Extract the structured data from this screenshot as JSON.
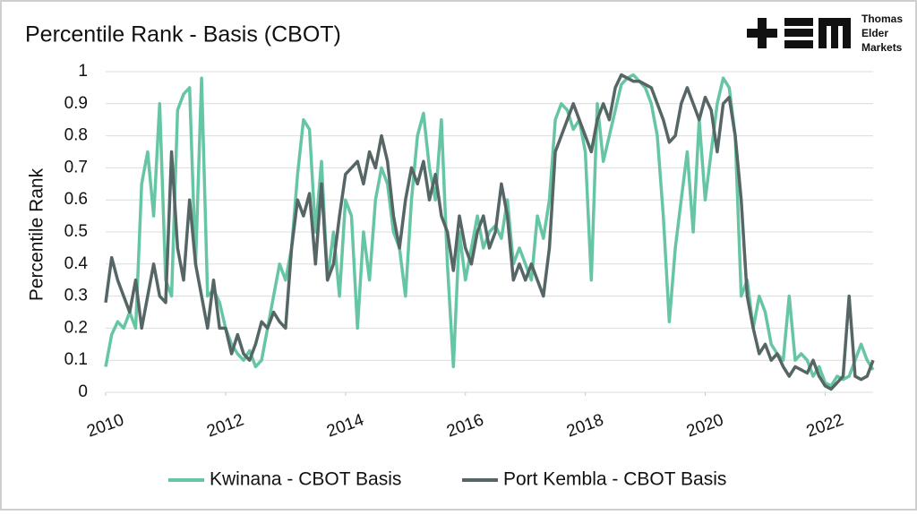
{
  "chart_data": {
    "type": "line",
    "title": "Percentile Rank - Basis (CBOT)",
    "y_label": "Percentile Rank",
    "annotations": [
      "Thomas",
      "Elder",
      "Markets"
    ],
    "x": [
      2010,
      2010.1,
      2010.2,
      2010.3,
      2010.4,
      2010.5,
      2010.6,
      2010.7,
      2010.8,
      2010.9,
      2011,
      2011.1,
      2011.2,
      2011.3,
      2011.4,
      2011.5,
      2011.6,
      2011.7,
      2011.8,
      2011.9,
      2012,
      2012.1,
      2012.2,
      2012.3,
      2012.4,
      2012.5,
      2012.6,
      2012.7,
      2012.8,
      2012.9,
      2013,
      2013.1,
      2013.2,
      2013.3,
      2013.4,
      2013.5,
      2013.6,
      2013.7,
      2013.8,
      2013.9,
      2014,
      2014.1,
      2014.2,
      2014.3,
      2014.4,
      2014.5,
      2014.6,
      2014.7,
      2014.8,
      2014.9,
      2015,
      2015.1,
      2015.2,
      2015.3,
      2015.4,
      2015.5,
      2015.6,
      2015.7,
      2015.8,
      2015.9,
      2016,
      2016.1,
      2016.2,
      2016.3,
      2016.4,
      2016.5,
      2016.6,
      2016.7,
      2016.8,
      2016.9,
      2017,
      2017.1,
      2017.2,
      2017.3,
      2017.4,
      2017.5,
      2017.6,
      2017.7,
      2017.8,
      2017.9,
      2018,
      2018.1,
      2018.2,
      2018.3,
      2018.4,
      2018.5,
      2018.6,
      2018.7,
      2018.8,
      2018.9,
      2019,
      2019.1,
      2019.2,
      2019.3,
      2019.4,
      2019.5,
      2019.6,
      2019.7,
      2019.8,
      2019.9,
      2020,
      2020.1,
      2020.2,
      2020.3,
      2020.4,
      2020.5,
      2020.6,
      2020.7,
      2020.8,
      2020.9,
      2021,
      2021.1,
      2021.2,
      2021.3,
      2021.4,
      2021.5,
      2021.6,
      2021.7,
      2021.8,
      2021.9,
      2022,
      2022.1,
      2022.2,
      2022.3,
      2022.4,
      2022.5,
      2022.6,
      2022.7,
      2022.8
    ],
    "series": [
      {
        "name": "Kwinana - CBOT Basis",
        "color": "#66c6a4",
        "values": [
          0.08,
          0.18,
          0.22,
          0.2,
          0.25,
          0.2,
          0.65,
          0.75,
          0.55,
          0.9,
          0.35,
          0.3,
          0.88,
          0.93,
          0.95,
          0.4,
          0.98,
          0.3,
          0.32,
          0.28,
          0.2,
          0.15,
          0.12,
          0.1,
          0.13,
          0.08,
          0.1,
          0.2,
          0.3,
          0.4,
          0.35,
          0.45,
          0.68,
          0.85,
          0.82,
          0.5,
          0.72,
          0.35,
          0.5,
          0.3,
          0.6,
          0.55,
          0.2,
          0.5,
          0.35,
          0.6,
          0.7,
          0.65,
          0.5,
          0.45,
          0.3,
          0.6,
          0.8,
          0.87,
          0.7,
          0.6,
          0.85,
          0.4,
          0.08,
          0.5,
          0.35,
          0.45,
          0.55,
          0.45,
          0.5,
          0.52,
          0.48,
          0.6,
          0.4,
          0.45,
          0.4,
          0.35,
          0.55,
          0.48,
          0.6,
          0.85,
          0.9,
          0.88,
          0.82,
          0.85,
          0.75,
          0.35,
          0.9,
          0.72,
          0.8,
          0.88,
          0.96,
          0.98,
          0.99,
          0.97,
          0.95,
          0.9,
          0.8,
          0.55,
          0.22,
          0.45,
          0.6,
          0.75,
          0.5,
          0.85,
          0.6,
          0.75,
          0.9,
          0.98,
          0.95,
          0.8,
          0.3,
          0.35,
          0.2,
          0.3,
          0.25,
          0.15,
          0.12,
          0.1,
          0.3,
          0.1,
          0.12,
          0.1,
          0.05,
          0.08,
          0.03,
          0.02,
          0.05,
          0.04,
          0.05,
          0.1,
          0.15,
          0.1,
          0.07
        ]
      },
      {
        "name": "Port Kembla - CBOT Basis",
        "color": "#566565",
        "values": [
          0.28,
          0.42,
          0.35,
          0.3,
          0.25,
          0.35,
          0.2,
          0.3,
          0.4,
          0.3,
          0.28,
          0.75,
          0.45,
          0.35,
          0.6,
          0.4,
          0.3,
          0.2,
          0.35,
          0.2,
          0.2,
          0.12,
          0.18,
          0.12,
          0.1,
          0.15,
          0.22,
          0.2,
          0.25,
          0.22,
          0.2,
          0.45,
          0.6,
          0.55,
          0.62,
          0.4,
          0.65,
          0.35,
          0.4,
          0.55,
          0.68,
          0.7,
          0.72,
          0.65,
          0.75,
          0.7,
          0.8,
          0.72,
          0.55,
          0.45,
          0.6,
          0.7,
          0.65,
          0.72,
          0.6,
          0.68,
          0.55,
          0.5,
          0.38,
          0.55,
          0.45,
          0.4,
          0.5,
          0.55,
          0.45,
          0.5,
          0.65,
          0.55,
          0.35,
          0.4,
          0.35,
          0.4,
          0.35,
          0.3,
          0.45,
          0.75,
          0.8,
          0.85,
          0.9,
          0.85,
          0.8,
          0.75,
          0.85,
          0.9,
          0.85,
          0.95,
          0.99,
          0.98,
          0.97,
          0.97,
          0.96,
          0.95,
          0.9,
          0.85,
          0.78,
          0.8,
          0.9,
          0.95,
          0.9,
          0.85,
          0.92,
          0.88,
          0.75,
          0.9,
          0.92,
          0.8,
          0.6,
          0.3,
          0.2,
          0.12,
          0.15,
          0.1,
          0.12,
          0.08,
          0.05,
          0.08,
          0.07,
          0.06,
          0.1,
          0.05,
          0.02,
          0.01,
          0.03,
          0.05,
          0.3,
          0.05,
          0.04,
          0.05,
          0.1
        ]
      }
    ],
    "xlim": [
      2010,
      2022.8
    ],
    "xticks": [
      2010,
      2012,
      2014,
      2016,
      2018,
      2020,
      2022
    ],
    "ylim": [
      0,
      1
    ],
    "yticks": [
      0,
      0.1,
      0.2,
      0.3,
      0.4,
      0.5,
      0.6,
      0.7,
      0.8,
      0.9,
      1
    ],
    "grid": true,
    "legend": "bottom"
  }
}
